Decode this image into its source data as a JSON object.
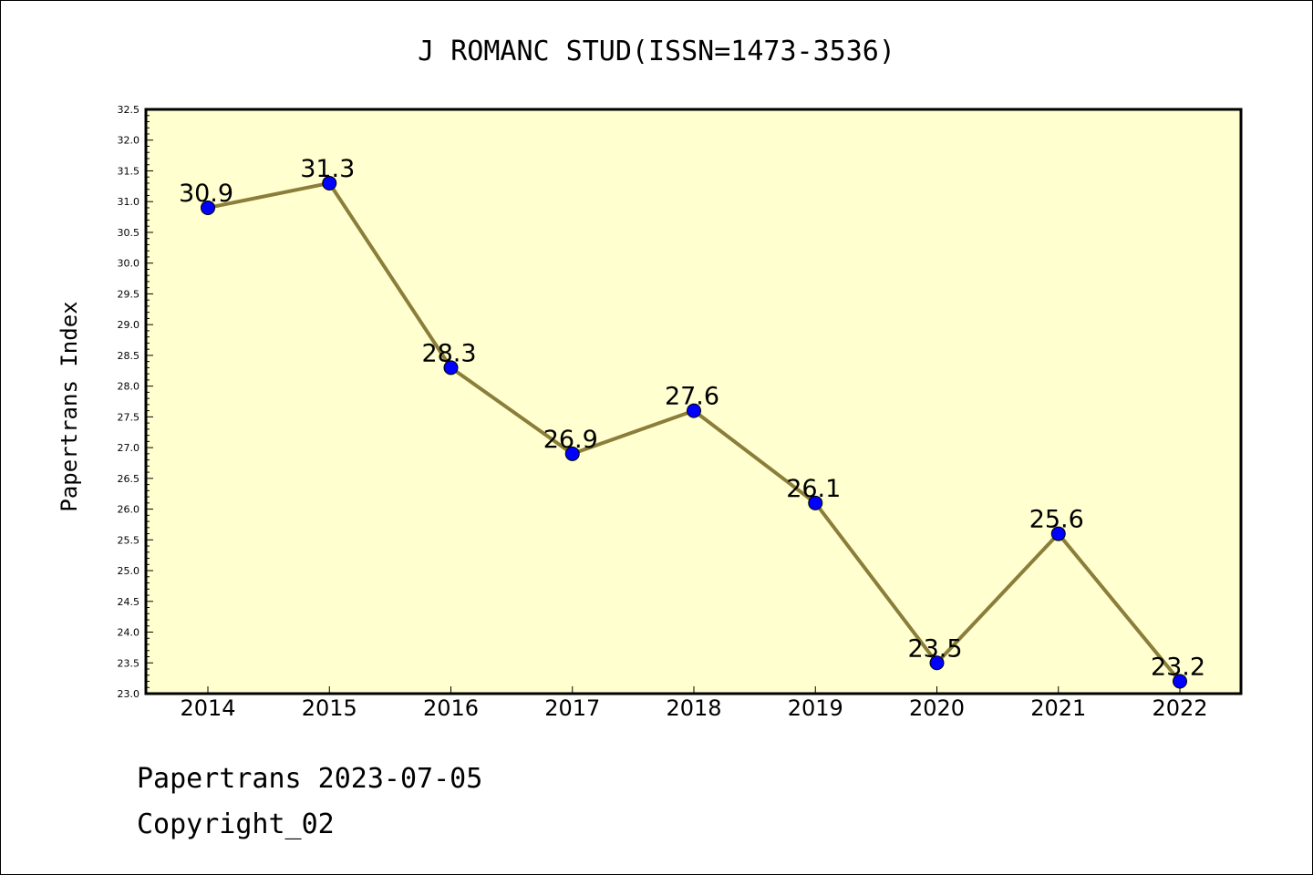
{
  "chart_data": {
    "type": "line",
    "title": "J ROMANC STUD(ISSN=1473-3536)",
    "ylabel": "Papertrans Index",
    "xlabel": "",
    "categories": [
      "2014",
      "2015",
      "2016",
      "2017",
      "2018",
      "2019",
      "2020",
      "2021",
      "2022"
    ],
    "values": [
      30.9,
      31.3,
      28.3,
      26.9,
      27.6,
      26.1,
      23.5,
      25.6,
      23.2
    ],
    "data_labels": [
      "30.9",
      "31.3",
      "28.3",
      "26.9",
      "27.6",
      "26.1",
      "23.5",
      "25.6",
      "23.2"
    ],
    "ylim": [
      23.0,
      32.5
    ],
    "yticks": [
      "23.0",
      "23.5",
      "24.0",
      "24.5",
      "25.0",
      "25.5",
      "26.0",
      "26.5",
      "27.0",
      "27.5",
      "28.0",
      "28.5",
      "29.0",
      "29.5",
      "30.0",
      "30.5",
      "31.0",
      "31.5",
      "32.0",
      "32.5"
    ],
    "grid": false,
    "legend": "none",
    "colors": {
      "plot_background": "#ffffd0",
      "line": "#8b7d3a",
      "marker": "#0000ff"
    }
  },
  "footer": {
    "line1": "Papertrans 2023-07-05",
    "line2": "Copyright_02"
  }
}
